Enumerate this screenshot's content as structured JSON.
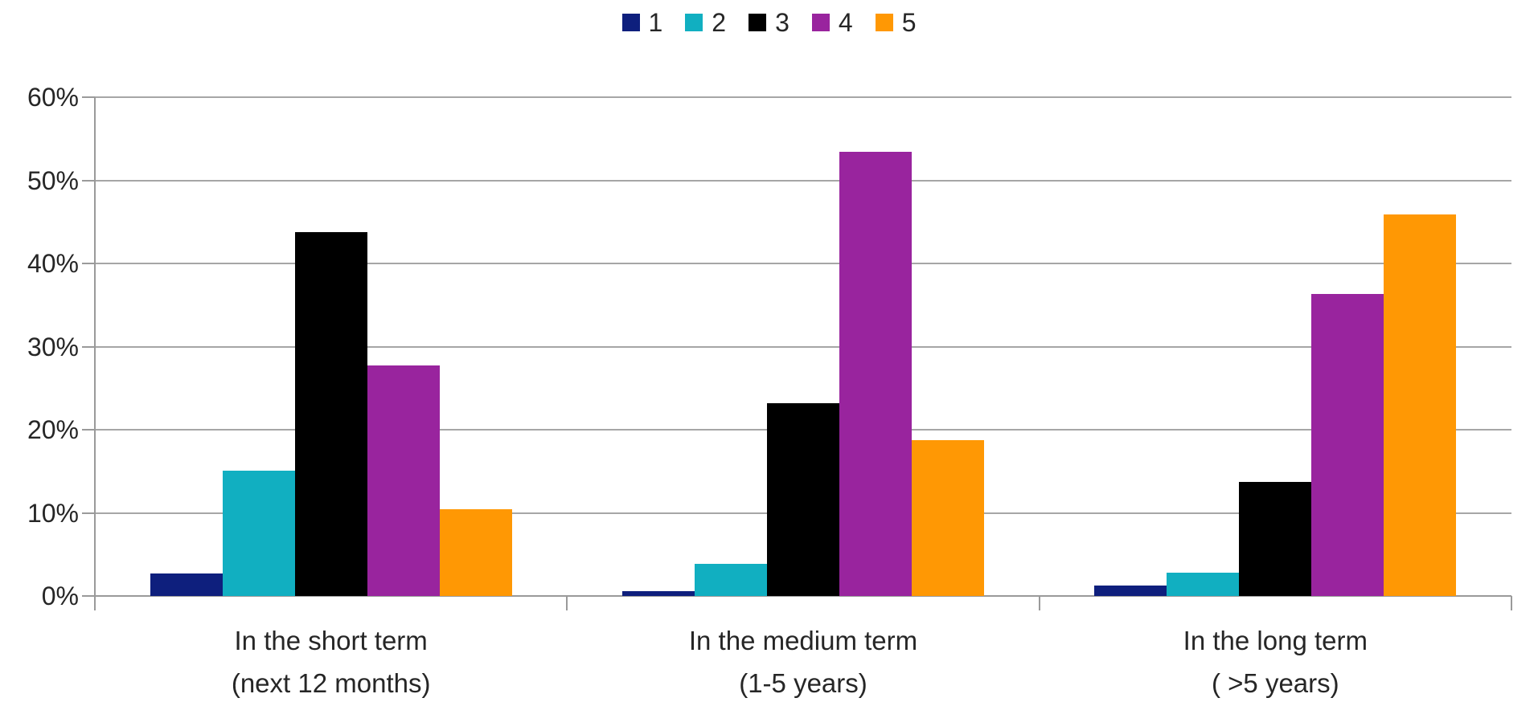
{
  "chart_data": {
    "type": "bar",
    "title": "",
    "subtitle": "",
    "xlabel": "",
    "ylabel": "",
    "legend_position": "top",
    "grid": "horizontal",
    "categories": [
      {
        "line1": "In the short term",
        "line2": "(next 12 months)"
      },
      {
        "line1": "In the medium term",
        "line2": "(1-5 years)"
      },
      {
        "line1": "In the long term",
        "line2": "( >5 years)"
      }
    ],
    "series": [
      {
        "name": "1",
        "color": "#0e1f7d",
        "values": [
          2.7,
          0.6,
          1.3
        ]
      },
      {
        "name": "2",
        "color": "#11afc1",
        "values": [
          15.1,
          3.9,
          2.8
        ]
      },
      {
        "name": "3",
        "color": "#000000",
        "values": [
          43.8,
          23.2,
          13.7
        ]
      },
      {
        "name": "4",
        "color": "#99249e",
        "values": [
          27.7,
          53.4,
          36.3
        ]
      },
      {
        "name": "5",
        "color": "#ff9804",
        "values": [
          10.4,
          18.7,
          45.9
        ]
      }
    ],
    "y_axis": {
      "min": 0,
      "max": 60,
      "step": 10,
      "unit": "%",
      "tick_labels": [
        "0%",
        "10%",
        "20%",
        "30%",
        "40%",
        "50%",
        "60%"
      ]
    },
    "colors": {
      "gridline": "#a6a6a6",
      "axis": "#9a9a9a",
      "text": "#262626",
      "background": "#ffffff"
    }
  }
}
